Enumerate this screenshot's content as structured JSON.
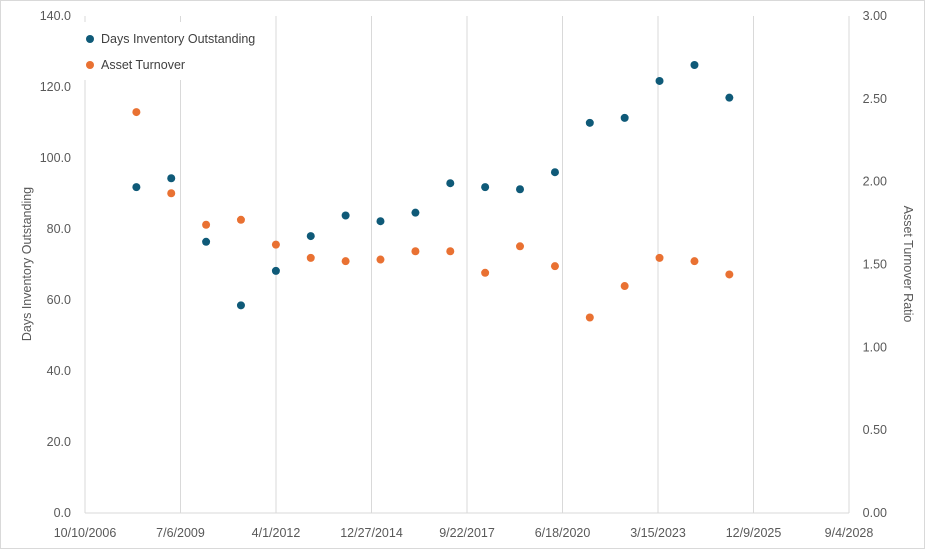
{
  "chart_data": {
    "type": "scatter",
    "title": "",
    "xlabel": "",
    "ylabel": "Days Inventory Outstanding",
    "y2label": "Asset Turnover Ratio",
    "x_is_date": true,
    "xlim": [
      "2006-10-10",
      "2028-09-04"
    ],
    "x_ticks": [
      "10/10/2006",
      "7/6/2009",
      "4/1/2012",
      "12/27/2014",
      "9/22/2017",
      "6/18/2020",
      "3/15/2023",
      "12/9/2025",
      "9/4/2028"
    ],
    "ylim": [
      0,
      140
    ],
    "y_ticks": [
      "0.0",
      "20.0",
      "40.0",
      "60.0",
      "80.0",
      "100.0",
      "120.0",
      "140.0"
    ],
    "y2lim": [
      0,
      3
    ],
    "y2_ticks": [
      "0.00",
      "0.50",
      "1.00",
      "1.50",
      "2.00",
      "2.50",
      "3.00"
    ],
    "grid": "vertical",
    "legend_position": "top-left",
    "series": [
      {
        "name": "Days Inventory Outstanding",
        "axis": "left",
        "color": "#0f5a78",
        "points": [
          {
            "x": "2008-03-31",
            "y": 91.8
          },
          {
            "x": "2009-03-31",
            "y": 94.3
          },
          {
            "x": "2010-03-31",
            "y": 76.4
          },
          {
            "x": "2011-03-31",
            "y": 58.5
          },
          {
            "x": "2012-03-31",
            "y": 68.2
          },
          {
            "x": "2013-03-31",
            "y": 78.0
          },
          {
            "x": "2014-03-31",
            "y": 83.8
          },
          {
            "x": "2015-03-31",
            "y": 82.2
          },
          {
            "x": "2016-03-31",
            "y": 84.6
          },
          {
            "x": "2017-03-31",
            "y": 92.9
          },
          {
            "x": "2018-03-31",
            "y": 91.8
          },
          {
            "x": "2019-03-31",
            "y": 91.2
          },
          {
            "x": "2020-03-31",
            "y": 96.0
          },
          {
            "x": "2021-03-31",
            "y": 109.9
          },
          {
            "x": "2022-03-31",
            "y": 111.3
          },
          {
            "x": "2023-03-31",
            "y": 121.7
          },
          {
            "x": "2024-03-31",
            "y": 126.2
          },
          {
            "x": "2025-03-31",
            "y": 117.0
          }
        ]
      },
      {
        "name": "Asset Turnover",
        "axis": "right",
        "color": "#e97132",
        "points": [
          {
            "x": "2008-03-31",
            "y": 2.42
          },
          {
            "x": "2009-03-31",
            "y": 1.93
          },
          {
            "x": "2010-03-31",
            "y": 1.74
          },
          {
            "x": "2011-03-31",
            "y": 1.77
          },
          {
            "x": "2012-03-31",
            "y": 1.62
          },
          {
            "x": "2013-03-31",
            "y": 1.54
          },
          {
            "x": "2014-03-31",
            "y": 1.52
          },
          {
            "x": "2015-03-31",
            "y": 1.53
          },
          {
            "x": "2016-03-31",
            "y": 1.58
          },
          {
            "x": "2017-03-31",
            "y": 1.58
          },
          {
            "x": "2018-03-31",
            "y": 1.45
          },
          {
            "x": "2019-03-31",
            "y": 1.61
          },
          {
            "x": "2020-03-31",
            "y": 1.49
          },
          {
            "x": "2021-03-31",
            "y": 1.18
          },
          {
            "x": "2022-03-31",
            "y": 1.37
          },
          {
            "x": "2023-03-31",
            "y": 1.54
          },
          {
            "x": "2024-03-31",
            "y": 1.52
          },
          {
            "x": "2025-03-31",
            "y": 1.44
          }
        ]
      }
    ]
  }
}
